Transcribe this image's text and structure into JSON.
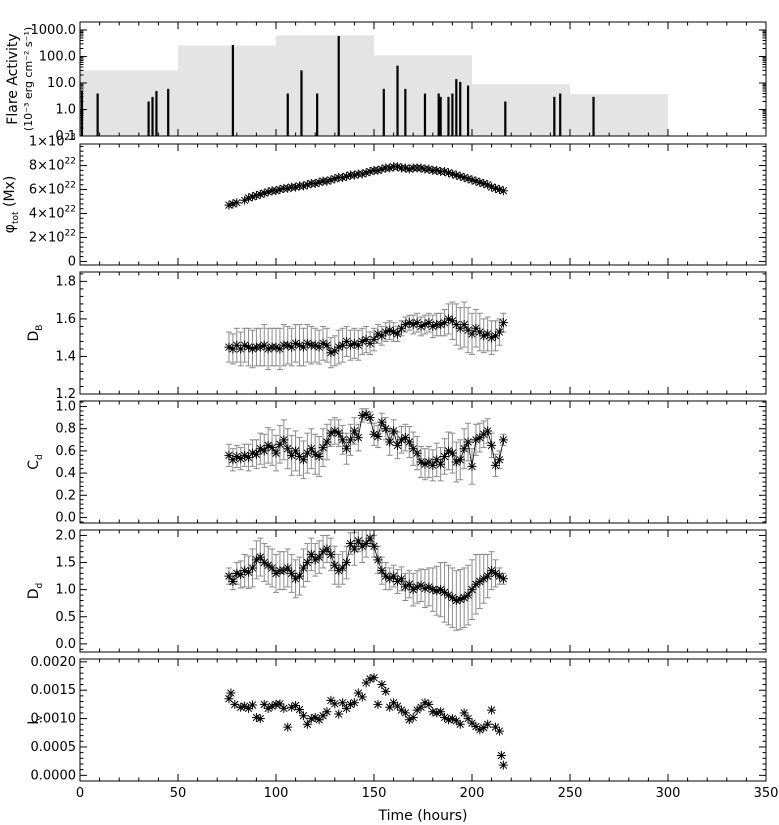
{
  "chart_data": [
    {
      "type": "bar",
      "ylabel_line1": "Flare Activity",
      "ylabel_line2": "(10⁻³ erg cm⁻² s⁻¹)",
      "yscale": "log",
      "ylim": [
        0.1,
        2000
      ],
      "xlim": [
        0,
        350
      ],
      "yticks": [
        {
          "value": 0.1,
          "label": "0.1"
        },
        {
          "value": 1.0,
          "label": "1.0"
        },
        {
          "value": 10.0,
          "label": "10.0"
        },
        {
          "value": 100.0,
          "label": "100.0"
        },
        {
          "value": 1000.0,
          "label": "1000.0"
        }
      ],
      "background_blocks": [
        {
          "x0": 0,
          "x1": 50,
          "value": 30
        },
        {
          "x0": 50,
          "x1": 100,
          "value": 260
        },
        {
          "x0": 100,
          "x1": 150,
          "value": 620
        },
        {
          "x0": 150,
          "x1": 200,
          "value": 110
        },
        {
          "x0": 200,
          "x1": 250,
          "value": 9
        },
        {
          "x0": 250,
          "x1": 300,
          "value": 3.8
        }
      ],
      "flares": [
        {
          "x": 1,
          "value": 5
        },
        {
          "x": 9,
          "value": 4
        },
        {
          "x": 35,
          "value": 2
        },
        {
          "x": 37,
          "value": 3
        },
        {
          "x": 39,
          "value": 5
        },
        {
          "x": 45,
          "value": 6
        },
        {
          "x": 78,
          "value": 270
        },
        {
          "x": 106,
          "value": 4
        },
        {
          "x": 113,
          "value": 30
        },
        {
          "x": 121,
          "value": 4
        },
        {
          "x": 132,
          "value": 600
        },
        {
          "x": 155,
          "value": 6
        },
        {
          "x": 162,
          "value": 45
        },
        {
          "x": 166,
          "value": 6
        },
        {
          "x": 176,
          "value": 4
        },
        {
          "x": 183,
          "value": 4
        },
        {
          "x": 184,
          "value": 3
        },
        {
          "x": 188,
          "value": 3
        },
        {
          "x": 190,
          "value": 4
        },
        {
          "x": 192,
          "value": 14
        },
        {
          "x": 194,
          "value": 11
        },
        {
          "x": 198,
          "value": 8
        },
        {
          "x": 217,
          "value": 2
        },
        {
          "x": 242,
          "value": 3
        },
        {
          "x": 245,
          "value": 4
        },
        {
          "x": 262,
          "value": 3
        }
      ],
      "colors": {
        "background": "#e4e4e4",
        "flare": "#000000"
      }
    },
    {
      "type": "scatter",
      "ylabel": "φtot (Mx)",
      "ylabel_main": "φ",
      "ylabel_sub": "tot",
      "ylabel_unit": "(Mx)",
      "ylim": [
        -3e+21,
        9.8e+22
      ],
      "xlim": [
        0,
        350
      ],
      "yticks": [
        {
          "value": 0,
          "label": "0"
        },
        {
          "value": 2e+22,
          "mant": "2×10",
          "exp": "22"
        },
        {
          "value": 4e+22,
          "mant": "4×10",
          "exp": "22"
        },
        {
          "value": 6e+22,
          "mant": "6×10",
          "exp": "22"
        },
        {
          "value": 8e+22,
          "mant": "8×10",
          "exp": "22"
        },
        {
          "value": 1e+23,
          "mant": "1×10",
          "exp": "23"
        }
      ],
      "x": [
        76,
        78,
        80,
        84,
        86,
        88,
        90,
        92,
        94,
        96,
        98,
        100,
        102,
        104,
        106,
        108,
        110,
        112,
        114,
        116,
        118,
        120,
        122,
        124,
        126,
        128,
        130,
        132,
        134,
        136,
        138,
        140,
        142,
        144,
        146,
        148,
        150,
        152,
        154,
        156,
        158,
        160,
        162,
        164,
        166,
        168,
        170,
        172,
        174,
        176,
        178,
        180,
        182,
        184,
        186,
        188,
        190,
        192,
        194,
        196,
        198,
        200,
        202,
        204,
        206,
        208,
        210,
        212,
        214,
        216
      ],
      "y": [
        4.7e+22,
        4.8e+22,
        4.9e+22,
        5.1e+22,
        5.3e+22,
        5.4e+22,
        5.5e+22,
        5.6e+22,
        5.7e+22,
        5.8e+22,
        5.9e+22,
        5.9e+22,
        6e+22,
        6.1e+22,
        6.1e+22,
        6.2e+22,
        6.2e+22,
        6.3e+22,
        6.3e+22,
        6.4e+22,
        6.5e+22,
        6.5e+22,
        6.6e+22,
        6.7e+22,
        6.7e+22,
        6.8e+22,
        6.9e+22,
        7e+22,
        7e+22,
        7.1e+22,
        7.2e+22,
        7.2e+22,
        7.3e+22,
        7.3e+22,
        7.4e+22,
        7.5e+22,
        7.6e+22,
        7.6e+22,
        7.7e+22,
        7.8e+22,
        7.8e+22,
        7.9e+22,
        7.9e+22,
        7.8e+22,
        7.8e+22,
        7.7e+22,
        7.8e+22,
        7.8e+22,
        7.8e+22,
        7.7e+22,
        7.7e+22,
        7.6e+22,
        7.6e+22,
        7.5e+22,
        7.5e+22,
        7.4e+22,
        7.3e+22,
        7.2e+22,
        7.1e+22,
        7e+22,
        6.9e+22,
        6.8e+22,
        6.7e+22,
        6.6e+22,
        6.5e+22,
        6.4e+22,
        6.2e+22,
        6.1e+22,
        6e+22,
        5.9e+22
      ]
    },
    {
      "type": "scatter",
      "ylabel_main": "D",
      "ylabel_sub": "B",
      "ylim": [
        1.2,
        1.85
      ],
      "xlim": [
        0,
        350
      ],
      "yticks": [
        {
          "value": 1.2,
          "label": "1.2"
        },
        {
          "value": 1.4,
          "label": "1.4"
        },
        {
          "value": 1.6,
          "label": "1.6"
        },
        {
          "value": 1.8,
          "label": "1.8"
        }
      ],
      "x": [
        76,
        78,
        80,
        82,
        84,
        86,
        88,
        90,
        92,
        94,
        96,
        98,
        100,
        102,
        104,
        106,
        108,
        110,
        112,
        114,
        116,
        118,
        120,
        122,
        124,
        126,
        128,
        130,
        132,
        134,
        136,
        138,
        140,
        142,
        144,
        146,
        148,
        150,
        152,
        154,
        156,
        158,
        160,
        162,
        164,
        166,
        168,
        170,
        172,
        174,
        176,
        178,
        180,
        182,
        184,
        186,
        188,
        190,
        192,
        194,
        196,
        198,
        200,
        202,
        204,
        206,
        208,
        210,
        212,
        214,
        216
      ],
      "y": [
        1.45,
        1.44,
        1.46,
        1.44,
        1.46,
        1.45,
        1.44,
        1.45,
        1.45,
        1.46,
        1.44,
        1.45,
        1.45,
        1.44,
        1.46,
        1.46,
        1.45,
        1.47,
        1.46,
        1.45,
        1.47,
        1.46,
        1.46,
        1.45,
        1.47,
        1.46,
        1.42,
        1.43,
        1.45,
        1.46,
        1.48,
        1.46,
        1.47,
        1.46,
        1.48,
        1.49,
        1.47,
        1.49,
        1.52,
        1.51,
        1.53,
        1.54,
        1.53,
        1.52,
        1.55,
        1.57,
        1.58,
        1.57,
        1.58,
        1.56,
        1.57,
        1.58,
        1.56,
        1.57,
        1.57,
        1.58,
        1.6,
        1.59,
        1.57,
        1.55,
        1.57,
        1.54,
        1.52,
        1.55,
        1.53,
        1.51,
        1.52,
        1.5,
        1.51,
        1.53,
        1.58
      ],
      "err": [
        0.08,
        0.08,
        0.09,
        0.09,
        0.09,
        0.1,
        0.1,
        0.1,
        0.1,
        0.11,
        0.11,
        0.1,
        0.1,
        0.11,
        0.11,
        0.1,
        0.1,
        0.1,
        0.11,
        0.1,
        0.1,
        0.1,
        0.09,
        0.09,
        0.09,
        0.09,
        0.08,
        0.08,
        0.09,
        0.09,
        0.08,
        0.08,
        0.08,
        0.08,
        0.07,
        0.07,
        0.06,
        0.06,
        0.05,
        0.05,
        0.05,
        0.05,
        0.05,
        0.04,
        0.04,
        0.04,
        0.04,
        0.05,
        0.05,
        0.05,
        0.05,
        0.05,
        0.06,
        0.06,
        0.06,
        0.07,
        0.08,
        0.1,
        0.11,
        0.11,
        0.12,
        0.12,
        0.11,
        0.1,
        0.1,
        0.09,
        0.09,
        0.09,
        0.08,
        0.07,
        0.05
      ]
    },
    {
      "type": "scatter",
      "ylabel_main": "C",
      "ylabel_sub": "d",
      "ylim": [
        -0.05,
        1.05
      ],
      "xlim": [
        0,
        350
      ],
      "yticks": [
        {
          "value": 0.0,
          "label": "0.0"
        },
        {
          "value": 0.2,
          "label": "0.2"
        },
        {
          "value": 0.4,
          "label": "0.4"
        },
        {
          "value": 0.6,
          "label": "0.6"
        },
        {
          "value": 0.8,
          "label": "0.8"
        },
        {
          "value": 1.0,
          "label": "1.0"
        }
      ],
      "x": [
        76,
        78,
        80,
        82,
        84,
        86,
        88,
        90,
        92,
        94,
        96,
        98,
        100,
        102,
        104,
        106,
        108,
        110,
        112,
        114,
        116,
        118,
        120,
        122,
        124,
        126,
        128,
        130,
        132,
        134,
        136,
        138,
        140,
        142,
        144,
        146,
        148,
        150,
        152,
        154,
        156,
        158,
        160,
        162,
        164,
        166,
        168,
        170,
        172,
        174,
        176,
        178,
        180,
        182,
        184,
        186,
        188,
        190,
        192,
        194,
        196,
        198,
        200,
        202,
        204,
        206,
        208,
        210,
        212,
        214,
        216
      ],
      "y": [
        0.56,
        0.52,
        0.55,
        0.53,
        0.56,
        0.54,
        0.58,
        0.57,
        0.62,
        0.6,
        0.65,
        0.63,
        0.58,
        0.66,
        0.7,
        0.62,
        0.56,
        0.6,
        0.55,
        0.52,
        0.58,
        0.62,
        0.57,
        0.55,
        0.63,
        0.68,
        0.76,
        0.78,
        0.76,
        0.7,
        0.62,
        0.7,
        0.78,
        0.72,
        0.92,
        0.93,
        0.9,
        0.75,
        0.73,
        0.86,
        0.8,
        0.68,
        0.78,
        0.65,
        0.7,
        0.72,
        0.68,
        0.62,
        0.58,
        0.5,
        0.48,
        0.5,
        0.47,
        0.52,
        0.48,
        0.55,
        0.6,
        0.58,
        0.5,
        0.52,
        0.62,
        0.68,
        0.46,
        0.7,
        0.72,
        0.75,
        0.78,
        0.65,
        0.47,
        0.52,
        0.7
      ],
      "err": [
        0.1,
        0.1,
        0.1,
        0.1,
        0.1,
        0.12,
        0.12,
        0.13,
        0.14,
        0.15,
        0.16,
        0.16,
        0.16,
        0.17,
        0.18,
        0.18,
        0.18,
        0.18,
        0.17,
        0.17,
        0.18,
        0.18,
        0.18,
        0.18,
        0.17,
        0.16,
        0.12,
        0.12,
        0.12,
        0.13,
        0.14,
        0.14,
        0.12,
        0.12,
        0.06,
        0.05,
        0.05,
        0.1,
        0.1,
        0.08,
        0.1,
        0.12,
        0.1,
        0.12,
        0.12,
        0.12,
        0.14,
        0.15,
        0.15,
        0.14,
        0.14,
        0.14,
        0.14,
        0.15,
        0.15,
        0.16,
        0.17,
        0.18,
        0.18,
        0.18,
        0.18,
        0.17,
        0.16,
        0.14,
        0.13,
        0.12,
        0.11,
        0.11,
        0.1,
        0.08,
        0.05
      ]
    },
    {
      "type": "scatter",
      "ylabel_main": "D",
      "ylabel_sub": "d",
      "ylim": [
        -0.15,
        2.1
      ],
      "xlim": [
        0,
        350
      ],
      "yticks": [
        {
          "value": 0.0,
          "label": "0.0"
        },
        {
          "value": 0.5,
          "label": "0.5"
        },
        {
          "value": 1.0,
          "label": "1.0"
        },
        {
          "value": 1.5,
          "label": "1.5"
        },
        {
          "value": 2.0,
          "label": "2.0"
        }
      ],
      "x": [
        76,
        78,
        80,
        82,
        84,
        86,
        88,
        90,
        92,
        94,
        96,
        98,
        100,
        102,
        104,
        106,
        108,
        110,
        112,
        114,
        116,
        118,
        120,
        122,
        124,
        126,
        128,
        130,
        132,
        134,
        136,
        138,
        140,
        142,
        144,
        146,
        148,
        150,
        152,
        154,
        156,
        158,
        160,
        162,
        164,
        166,
        168,
        170,
        172,
        174,
        176,
        178,
        180,
        182,
        184,
        186,
        188,
        190,
        192,
        194,
        196,
        198,
        200,
        202,
        204,
        206,
        208,
        210,
        212,
        214,
        216
      ],
      "y": [
        1.25,
        1.15,
        1.3,
        1.28,
        1.35,
        1.32,
        1.4,
        1.55,
        1.6,
        1.5,
        1.45,
        1.4,
        1.3,
        1.35,
        1.35,
        1.4,
        1.3,
        1.2,
        1.25,
        1.4,
        1.5,
        1.65,
        1.55,
        1.6,
        1.7,
        1.75,
        1.65,
        1.45,
        1.35,
        1.4,
        1.5,
        1.85,
        1.75,
        1.9,
        1.8,
        1.85,
        1.95,
        1.8,
        1.55,
        1.35,
        1.25,
        1.2,
        1.25,
        1.15,
        1.2,
        1.05,
        1.1,
        1.0,
        1.05,
        1.08,
        1.02,
        1.05,
        1.0,
        0.98,
        1.0,
        0.95,
        0.9,
        0.85,
        0.8,
        0.82,
        0.85,
        0.9,
        1.0,
        1.1,
        1.15,
        1.2,
        1.25,
        1.35,
        1.3,
        1.25,
        1.2
      ],
      "err": [
        0.15,
        0.15,
        0.2,
        0.25,
        0.3,
        0.3,
        0.35,
        0.35,
        0.35,
        0.35,
        0.35,
        0.35,
        0.35,
        0.35,
        0.35,
        0.35,
        0.35,
        0.35,
        0.35,
        0.35,
        0.35,
        0.3,
        0.3,
        0.3,
        0.3,
        0.25,
        0.3,
        0.35,
        0.3,
        0.3,
        0.3,
        0.2,
        0.3,
        0.2,
        0.3,
        0.25,
        0.15,
        0.2,
        0.25,
        0.25,
        0.25,
        0.2,
        0.2,
        0.22,
        0.22,
        0.25,
        0.25,
        0.3,
        0.3,
        0.3,
        0.35,
        0.35,
        0.4,
        0.45,
        0.5,
        0.55,
        0.55,
        0.55,
        0.55,
        0.55,
        0.55,
        0.55,
        0.55,
        0.55,
        0.5,
        0.45,
        0.4,
        0.35,
        0.25,
        0.15,
        0.1
      ]
    },
    {
      "type": "scatter",
      "ylabel_main": "I",
      "ylabel_sub": "v",
      "ylim": [
        -0.0001,
        0.00205
      ],
      "xlim": [
        0,
        350
      ],
      "xlabel": "Time (hours)",
      "yticks": [
        {
          "value": 0.0,
          "label": "0.0000"
        },
        {
          "value": 0.0005,
          "label": "0.0005"
        },
        {
          "value": 0.001,
          "label": "0.0010"
        },
        {
          "value": 0.0015,
          "label": "0.0015"
        },
        {
          "value": 0.002,
          "label": "0.0020"
        }
      ],
      "xticks": [
        {
          "value": 0,
          "label": "0"
        },
        {
          "value": 50,
          "label": "50"
        },
        {
          "value": 100,
          "label": "100"
        },
        {
          "value": 150,
          "label": "150"
        },
        {
          "value": 200,
          "label": "200"
        },
        {
          "value": 250,
          "label": "250"
        },
        {
          "value": 300,
          "label": "300"
        },
        {
          "value": 350,
          "label": "350"
        }
      ],
      "x": [
        76,
        77,
        79,
        82,
        84,
        86,
        88,
        90,
        92,
        94,
        96,
        98,
        100,
        102,
        104,
        106,
        108,
        110,
        112,
        114,
        116,
        118,
        120,
        122,
        124,
        126,
        128,
        130,
        132,
        134,
        136,
        138,
        140,
        142,
        144,
        146,
        148,
        150,
        152,
        154,
        156,
        158,
        160,
        162,
        164,
        166,
        168,
        170,
        172,
        174,
        176,
        178,
        180,
        182,
        184,
        186,
        188,
        190,
        192,
        194,
        196,
        198,
        200,
        202,
        204,
        206,
        208,
        210,
        212,
        214,
        215,
        216
      ],
      "y": [
        0.00135,
        0.00145,
        0.00125,
        0.0012,
        0.00122,
        0.00118,
        0.00124,
        0.00102,
        0.001,
        0.00125,
        0.00118,
        0.00122,
        0.00125,
        0.00126,
        0.00118,
        0.00085,
        0.0012,
        0.00123,
        0.00116,
        0.00105,
        0.0009,
        0.001,
        0.00102,
        0.00098,
        0.00105,
        0.00112,
        0.00132,
        0.00126,
        0.00108,
        0.00128,
        0.00118,
        0.00125,
        0.00128,
        0.00145,
        0.00138,
        0.00163,
        0.0017,
        0.00172,
        0.00125,
        0.0016,
        0.00148,
        0.0012,
        0.00128,
        0.00122,
        0.00115,
        0.0011,
        0.00098,
        0.00102,
        0.00115,
        0.0012,
        0.00128,
        0.00125,
        0.00112,
        0.0011,
        0.00112,
        0.00102,
        0.00098,
        0.001,
        0.00096,
        0.0009,
        0.0011,
        0.001,
        0.00092,
        0.00086,
        0.0008,
        0.00084,
        0.0009,
        0.00115,
        0.00085,
        0.00078,
        0.00035,
        0.00018
      ]
    }
  ]
}
